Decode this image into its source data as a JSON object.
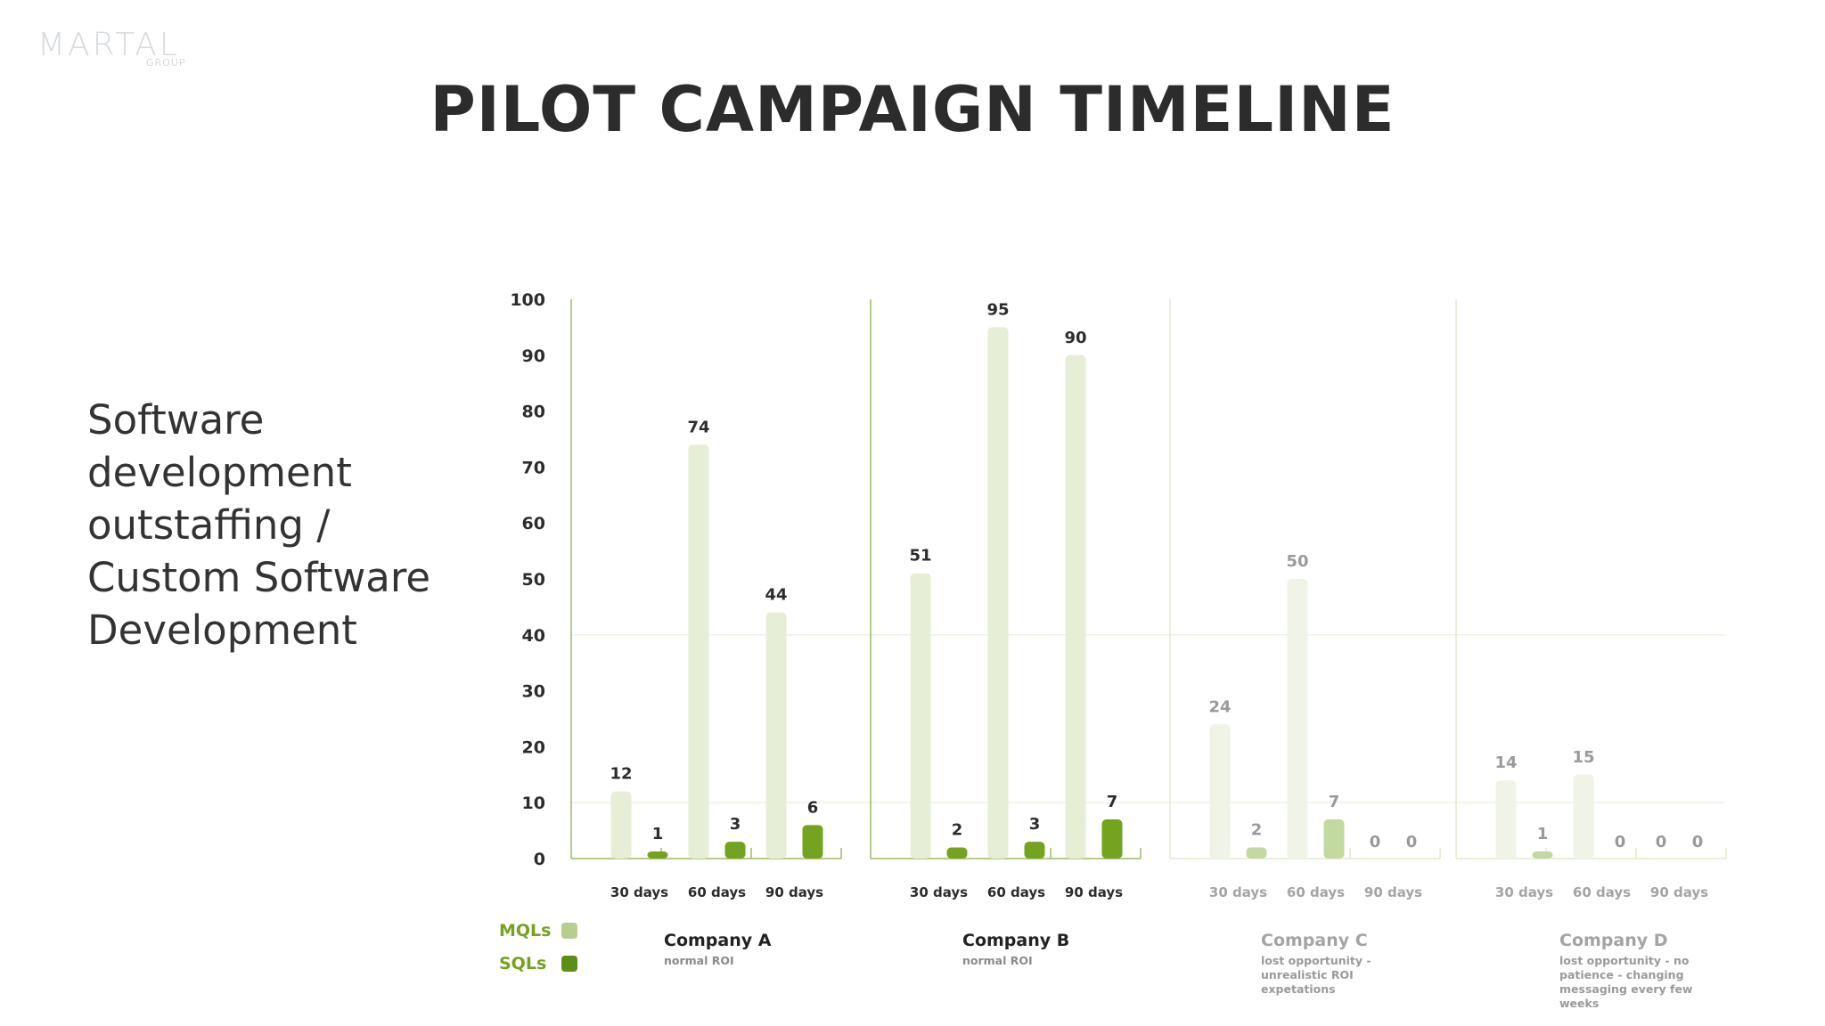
{
  "logo": {
    "name": "MARTAL",
    "sub": "GROUP"
  },
  "title": "PILOT CAMPAIGN TIMELINE",
  "subtitle_lines": [
    "Software",
    "development",
    "outstaffing /",
    "Custom Software",
    "Development"
  ],
  "colors": {
    "mql": "#e6eed6",
    "sql": "#74a31f",
    "mql_faded": "#eff4e6",
    "sql_faded": "#c2d9a0",
    "axis": "#9cbb62",
    "axis_faded": "#e1ebd0",
    "legend_mql": "#b6cf8f",
    "legend_sql": "#5a8e17"
  },
  "legend": {
    "mql": "MQLs",
    "sql": "SQLs"
  },
  "chart_data": {
    "type": "bar",
    "ylim": [
      0,
      100
    ],
    "yticks": [
      0,
      10,
      20,
      30,
      40,
      50,
      60,
      70,
      80,
      90,
      100
    ],
    "categories": [
      "30 days",
      "60 days",
      "90 days"
    ],
    "groups": [
      {
        "company": "Company A",
        "note": "normal ROI",
        "faded": false,
        "mql": [
          12,
          74,
          44
        ],
        "sql": [
          1,
          3,
          6
        ]
      },
      {
        "company": "Company B",
        "note": "normal ROI",
        "faded": false,
        "mql": [
          51,
          95,
          90
        ],
        "sql": [
          2,
          3,
          7
        ]
      },
      {
        "company": "Company C",
        "note": "lost opportunity - unrealistic ROI expetations",
        "faded": true,
        "mql": [
          24,
          50,
          0
        ],
        "sql": [
          2,
          7,
          0
        ]
      },
      {
        "company": "Company D",
        "note": "lost opportunity - no patience - changing messaging every few weeks",
        "faded": true,
        "mql": [
          14,
          15,
          0
        ],
        "sql": [
          1,
          0,
          0
        ]
      }
    ]
  }
}
